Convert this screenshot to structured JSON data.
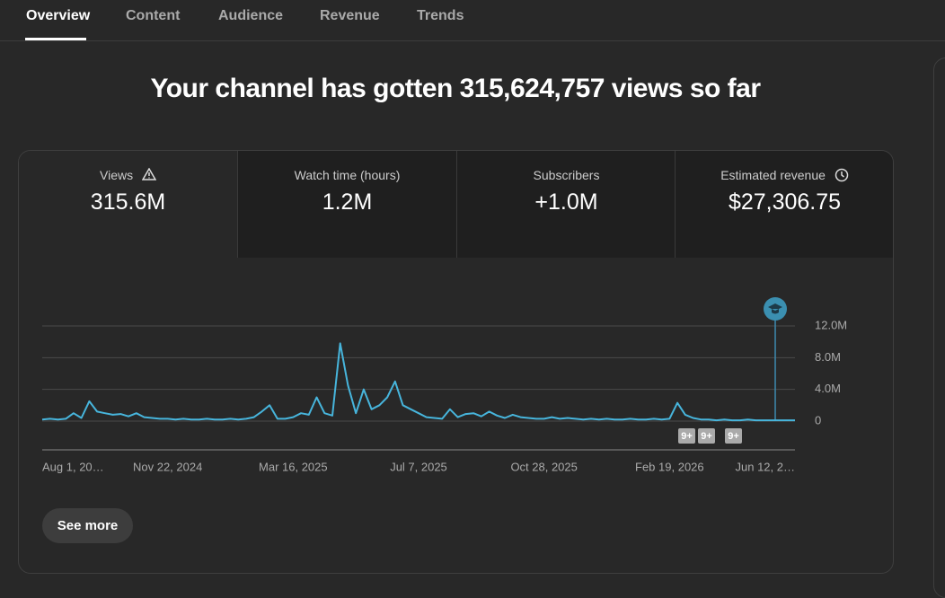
{
  "nav": {
    "tabs": [
      "Overview",
      "Content",
      "Audience",
      "Revenue",
      "Trends"
    ]
  },
  "headline": "Your channel has gotten 315,624,757 views so far",
  "metrics": [
    {
      "label": "Views",
      "value": "315.6M"
    },
    {
      "label": "Watch time (hours)",
      "value": "1.2M"
    },
    {
      "label": "Subscribers",
      "value": "+1.0M"
    },
    {
      "label": "Estimated revenue",
      "value": "$27,306.75"
    }
  ],
  "chart_data": {
    "type": "line",
    "color": "#47b5dc",
    "grid": true,
    "categories": [
      "Aug 1, 20…",
      null,
      null,
      null,
      null,
      null,
      null,
      null,
      null,
      null,
      null,
      null,
      null,
      null,
      null,
      null,
      "Nov 22, 2024",
      null,
      null,
      null,
      null,
      null,
      null,
      null,
      null,
      null,
      null,
      null,
      null,
      null,
      null,
      null,
      "Mar 16, 2025",
      null,
      null,
      null,
      null,
      null,
      null,
      null,
      null,
      null,
      null,
      null,
      null,
      null,
      null,
      null,
      "Jul 7, 2025",
      null,
      null,
      null,
      null,
      null,
      null,
      null,
      null,
      null,
      null,
      null,
      null,
      null,
      null,
      null,
      "Oct 28, 2025",
      null,
      null,
      null,
      null,
      null,
      null,
      null,
      null,
      null,
      null,
      null,
      null,
      null,
      null,
      null,
      "Feb 19, 2026",
      null,
      null,
      null,
      null,
      null,
      null,
      null,
      null,
      null,
      null,
      null,
      null,
      null,
      null,
      null,
      "Jun 12, 2…"
    ],
    "values": [
      200000,
      300000,
      200000,
      300000,
      1000000,
      400000,
      2500000,
      1200000,
      1000000,
      800000,
      900000,
      600000,
      1000000,
      500000,
      400000,
      300000,
      300000,
      200000,
      300000,
      200000,
      200000,
      300000,
      200000,
      200000,
      300000,
      200000,
      300000,
      500000,
      1200000,
      2000000,
      300000,
      300000,
      500000,
      1000000,
      800000,
      3000000,
      1000000,
      700000,
      9800000,
      4500000,
      1000000,
      4000000,
      1500000,
      2000000,
      3000000,
      5000000,
      2000000,
      1500000,
      1000000,
      500000,
      400000,
      300000,
      1500000,
      500000,
      900000,
      1000000,
      600000,
      1200000,
      700000,
      400000,
      800000,
      500000,
      400000,
      300000,
      300000,
      500000,
      300000,
      400000,
      300000,
      200000,
      300000,
      200000,
      300000,
      200000,
      200000,
      300000,
      200000,
      200000,
      300000,
      200000,
      300000,
      2300000,
      800000,
      400000,
      200000,
      200000,
      100000,
      200000,
      100000,
      100000,
      200000,
      100000,
      100000,
      100000,
      100000,
      100000,
      100000
    ],
    "ylim": [
      0,
      12000000
    ],
    "yticks": [
      0,
      {
        "value": 4000000,
        "label": "4.0M"
      },
      {
        "value": 8000000,
        "label": "8.0M"
      },
      {
        "value": 12000000,
        "label": "12.0M"
      }
    ],
    "badges": [
      "9+",
      "9+",
      "9+"
    ]
  },
  "button": "See more"
}
